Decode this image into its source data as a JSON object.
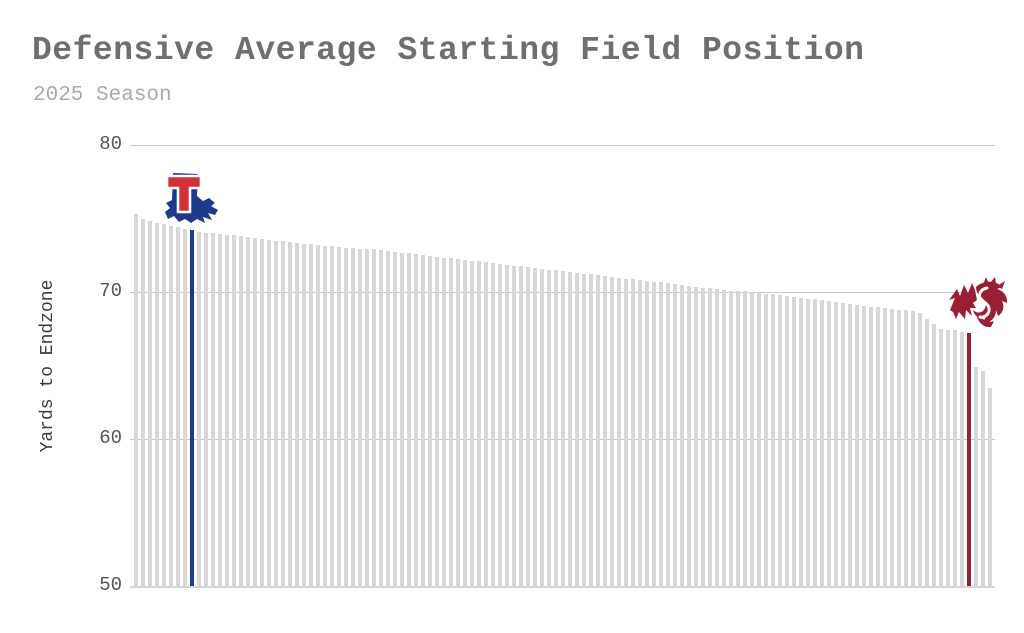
{
  "header": {
    "title": "Defensive Average Starting Field Position",
    "subtitle": "2025 Season"
  },
  "colors": {
    "title_text": "#6f6f6f",
    "subtitle_text": "#aaaaaa",
    "bar_default": "#d7d7d7",
    "gridline": "#c9c9c9",
    "louisiana_tech_blue": "#1e3a8c",
    "louisiana_tech_red": "#cf3339",
    "washington_state_crimson": "#9b1f33"
  },
  "chart_data": {
    "type": "bar",
    "title": "Defensive Average Starting Field Position",
    "subtitle": "2025 Season",
    "xlabel": "",
    "ylabel": "Yards to Endzone",
    "ylim": [
      50,
      80
    ],
    "yticks": [
      80,
      70,
      60,
      50
    ],
    "grid": "horizontal gridlines at 50/60/70/80, bars sorted descending, no x tick labels",
    "legend": "none",
    "bar_count": 123,
    "highlights": [
      {
        "index": 8,
        "logo": "louisiana-tech",
        "color": "#1e3a8c",
        "value": 74.2
      },
      {
        "index": 119,
        "logo": "washington-state",
        "color": "#9b1f33",
        "value": 67.2
      }
    ],
    "values": [
      75.3,
      75.0,
      74.8,
      74.7,
      74.6,
      74.5,
      74.4,
      74.3,
      74.2,
      74.1,
      74.05,
      74.0,
      73.95,
      73.9,
      73.85,
      73.8,
      73.75,
      73.7,
      73.6,
      73.55,
      73.5,
      73.45,
      73.4,
      73.35,
      73.3,
      73.25,
      73.2,
      73.15,
      73.1,
      73.05,
      73.0,
      72.98,
      72.95,
      72.92,
      72.9,
      72.85,
      72.79,
      72.74,
      72.68,
      72.63,
      72.57,
      72.52,
      72.46,
      72.41,
      72.35,
      72.3,
      72.24,
      72.19,
      72.13,
      72.08,
      72.02,
      71.97,
      71.91,
      71.86,
      71.8,
      71.75,
      71.69,
      71.64,
      71.58,
      71.53,
      71.47,
      71.42,
      71.36,
      71.31,
      71.25,
      71.2,
      71.14,
      71.09,
      71.03,
      70.98,
      70.92,
      70.87,
      70.81,
      70.76,
      70.7,
      70.65,
      70.59,
      70.54,
      70.48,
      70.43,
      70.37,
      70.3,
      70.25,
      70.2,
      70.15,
      70.1,
      70.08,
      70.05,
      70.02,
      70.0,
      69.9,
      69.85,
      69.8,
      69.7,
      69.65,
      69.6,
      69.55,
      69.5,
      69.45,
      69.4,
      69.3,
      69.25,
      69.2,
      69.1,
      69.05,
      69.0,
      68.95,
      68.9,
      68.85,
      68.8,
      68.75,
      68.7,
      68.6,
      68.2,
      67.8,
      67.5,
      67.45,
      67.4,
      67.3,
      67.2,
      64.9,
      64.6,
      63.5
    ]
  }
}
